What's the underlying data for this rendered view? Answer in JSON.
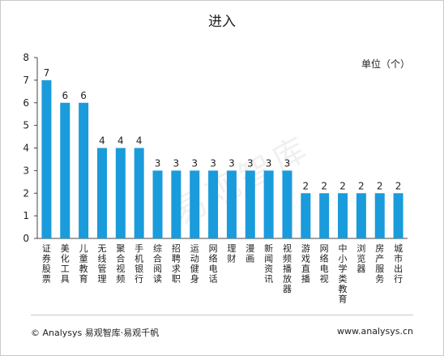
{
  "page": {
    "title": "进入",
    "unit_label": "单位（个）",
    "footer_left": "© Analysys 易观智库·易观千帆",
    "footer_right": "www.analysys.cn",
    "watermark": "易观智库",
    "bar_color": "#1a9bdb"
  },
  "chart_data": {
    "type": "bar",
    "title": "进入",
    "unit": "单位（个）",
    "categories": [
      "证券股票",
      "美化工具",
      "儿童教育",
      "无线管理",
      "聚合视频",
      "手机银行",
      "综合阅读",
      "招聘求职",
      "运动健身",
      "网络电话",
      "理财",
      "漫画",
      "新闻资讯",
      "视频播放器",
      "游戏直播",
      "网络电视",
      "中小学类教育",
      "浏览器",
      "房产服务",
      "城市出行"
    ],
    "values": [
      7,
      6,
      6,
      4,
      4,
      4,
      3,
      3,
      3,
      3,
      3,
      3,
      3,
      3,
      2,
      2,
      2,
      2,
      2,
      2
    ],
    "ylim": [
      0,
      8
    ],
    "yticks": [
      0,
      1,
      2,
      3,
      4,
      5,
      6,
      7,
      8
    ],
    "grid": false,
    "data_labels": true
  }
}
